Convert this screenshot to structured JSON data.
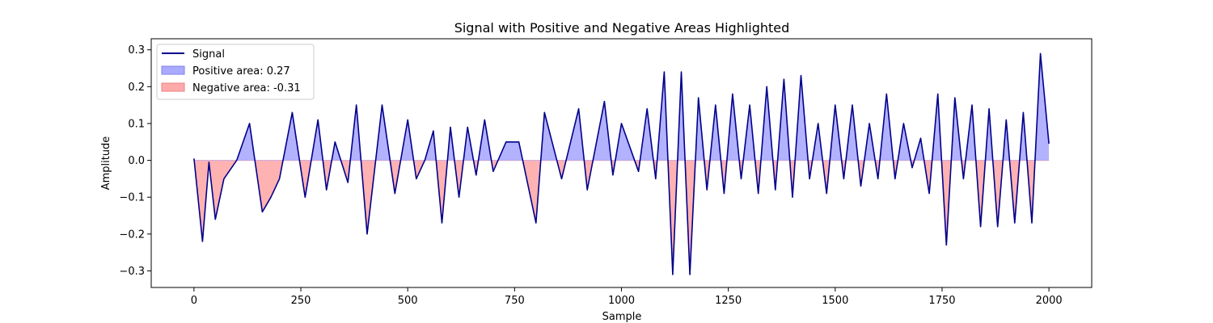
{
  "chart_data": {
    "type": "line",
    "title": "Signal with Positive and Negative Areas Highlighted",
    "xlabel": "Sample",
    "ylabel": "Amplitude",
    "xlim": [
      -100,
      2100
    ],
    "ylim": [
      -0.345,
      0.33
    ],
    "xticks": [
      0,
      250,
      500,
      750,
      1000,
      1250,
      1500,
      1750,
      2000
    ],
    "xtick_labels": [
      "0",
      "250",
      "500",
      "750",
      "1000",
      "1250",
      "1500",
      "1750",
      "2000"
    ],
    "yticks": [
      -0.3,
      -0.2,
      -0.1,
      0.0,
      0.1,
      0.2,
      0.3
    ],
    "ytick_labels": [
      "−0.3",
      "−0.2",
      "−0.1",
      "0.0",
      "0.1",
      "0.2",
      "0.3"
    ],
    "grid": false,
    "legend_position": "upper-left",
    "colors": {
      "signal": "#00008b",
      "positive": "#aaaaff",
      "negative": "#ffaaaa"
    },
    "series": [
      {
        "name": "Signal",
        "x": [
          0,
          20,
          35,
          50,
          70,
          100,
          130,
          160,
          180,
          200,
          230,
          260,
          290,
          310,
          330,
          360,
          380,
          405,
          440,
          470,
          500,
          520,
          540,
          560,
          580,
          600,
          620,
          640,
          660,
          680,
          700,
          730,
          760,
          800,
          820,
          860,
          900,
          920,
          960,
          980,
          1000,
          1040,
          1060,
          1080,
          1100,
          1120,
          1140,
          1160,
          1180,
          1200,
          1220,
          1240,
          1260,
          1280,
          1300,
          1320,
          1340,
          1360,
          1380,
          1400,
          1420,
          1440,
          1460,
          1480,
          1500,
          1520,
          1540,
          1560,
          1580,
          1600,
          1620,
          1640,
          1660,
          1680,
          1700,
          1720,
          1740,
          1760,
          1780,
          1800,
          1820,
          1840,
          1860,
          1880,
          1900,
          1920,
          1940,
          1960,
          1980,
          2000
        ],
        "y": [
          0.005,
          -0.22,
          -0.005,
          -0.16,
          -0.05,
          0.0,
          0.1,
          -0.14,
          -0.1,
          -0.05,
          0.13,
          -0.1,
          0.11,
          -0.08,
          0.05,
          -0.06,
          0.15,
          -0.2,
          0.15,
          -0.09,
          0.11,
          -0.05,
          0.0,
          0.08,
          -0.17,
          0.09,
          -0.1,
          0.09,
          -0.04,
          0.11,
          -0.03,
          0.05,
          0.05,
          -0.17,
          0.13,
          -0.05,
          0.14,
          -0.08,
          0.16,
          -0.04,
          0.1,
          -0.03,
          0.14,
          -0.05,
          0.24,
          -0.31,
          0.24,
          -0.31,
          0.17,
          -0.08,
          0.15,
          -0.09,
          0.18,
          -0.05,
          0.15,
          -0.09,
          0.2,
          -0.08,
          0.22,
          -0.1,
          0.23,
          -0.05,
          0.1,
          -0.09,
          0.15,
          -0.05,
          0.15,
          -0.07,
          0.1,
          -0.05,
          0.18,
          -0.05,
          0.1,
          -0.02,
          0.06,
          -0.09,
          0.18,
          -0.23,
          0.17,
          -0.05,
          0.15,
          -0.18,
          0.14,
          -0.18,
          0.11,
          -0.17,
          0.13,
          -0.17,
          0.29,
          0.045
        ]
      }
    ],
    "areas": [
      {
        "name": "Positive area: 0.27",
        "value": 0.27
      },
      {
        "name": "Negative area: -0.31",
        "value": -0.31
      }
    ]
  }
}
